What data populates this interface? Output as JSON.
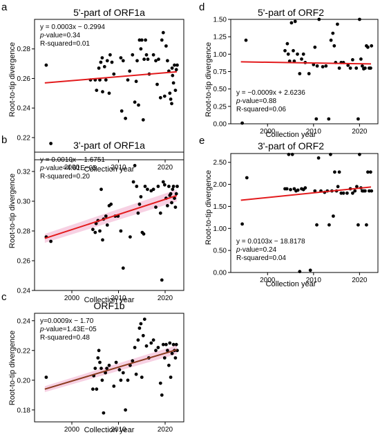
{
  "figure": {
    "panels": [
      "a",
      "d",
      "b",
      "e",
      "c"
    ]
  },
  "chart_data": [
    {
      "panel_letter": "a",
      "type": "scatter",
      "title": "5'-part of ORF1a",
      "xlabel": "Collection year",
      "ylabel": "Root-to-tip divergence",
      "xlim": [
        1992,
        2024
      ],
      "ylim": [
        0.205,
        0.3
      ],
      "xticks": [
        2000,
        2010,
        2020
      ],
      "yticks": [
        0.22,
        0.24,
        0.26,
        0.28
      ],
      "ytick_labels": [
        "0.22",
        "0.24",
        "0.26",
        "0.28"
      ],
      "stats": [
        "y = 0.0003x − 0.2994",
        "p-value=0.34",
        "R-squared=0.01"
      ],
      "regression": {
        "x": [
          1994.2,
          2022.5
        ],
        "y": [
          0.257,
          0.2645
        ],
        "color": "#e31a1c"
      },
      "band": null,
      "points": [
        [
          1994.5,
          0.269
        ],
        [
          1995.5,
          0.216
        ],
        [
          2004,
          0.259
        ],
        [
          2005,
          0.259
        ],
        [
          2005.3,
          0.252
        ],
        [
          2005.8,
          0.267
        ],
        [
          2006,
          0.259
        ],
        [
          2006.2,
          0.271
        ],
        [
          2006.5,
          0.274
        ],
        [
          2006.6,
          0.251
        ],
        [
          2007,
          0.268
        ],
        [
          2007.3,
          0.259
        ],
        [
          2007.6,
          0.272
        ],
        [
          2008,
          0.25
        ],
        [
          2008.2,
          0.276
        ],
        [
          2008.6,
          0.271
        ],
        [
          2009,
          0.263
        ],
        [
          2010.5,
          0.274
        ],
        [
          2010.7,
          0.238
        ],
        [
          2011,
          0.272
        ],
        [
          2011.5,
          0.233
        ],
        [
          2012,
          0.259
        ],
        [
          2012.4,
          0.265
        ],
        [
          2013,
          0.276
        ],
        [
          2013.5,
          0.244
        ],
        [
          2013.8,
          0.258
        ],
        [
          2014,
          0.272
        ],
        [
          2014.3,
          0.242
        ],
        [
          2014.5,
          0.286
        ],
        [
          2014.8,
          0.28
        ],
        [
          2015,
          0.286
        ],
        [
          2015.3,
          0.232
        ],
        [
          2015.5,
          0.273
        ],
        [
          2015.8,
          0.286
        ],
        [
          2016,
          0.276
        ],
        [
          2016.3,
          0.273
        ],
        [
          2016.6,
          0.263
        ],
        [
          2017.5,
          0.276
        ],
        [
          2018,
          0.272
        ],
        [
          2018.3,
          0.256
        ],
        [
          2018.6,
          0.273
        ],
        [
          2019,
          0.247
        ],
        [
          2019.3,
          0.286
        ],
        [
          2019.6,
          0.291
        ],
        [
          2019.9,
          0.248
        ],
        [
          2020.2,
          0.282
        ],
        [
          2020.5,
          0.272
        ],
        [
          2020.8,
          0.265
        ],
        [
          2021,
          0.25
        ],
        [
          2021.2,
          0.246
        ],
        [
          2021.4,
          0.243
        ],
        [
          2021.5,
          0.267
        ],
        [
          2021.6,
          0.262
        ],
        [
          2021.8,
          0.257
        ],
        [
          2022,
          0.269
        ],
        [
          2022.2,
          0.252
        ],
        [
          2022.4,
          0.266
        ],
        [
          2022.6,
          0.269
        ]
      ]
    },
    {
      "panel_letter": "d",
      "type": "scatter",
      "title": "5'-part of ORF2",
      "xlabel": "Collection year",
      "ylabel": "Root-to-tip divergence",
      "xlim": [
        1992,
        2024
      ],
      "ylim": [
        0,
        1.5
      ],
      "xticks": [
        2000,
        2010,
        2020
      ],
      "yticks": [
        0,
        0.25,
        0.5,
        0.75,
        1.0,
        1.25,
        1.5
      ],
      "ytick_labels": [
        "0.00",
        "0.25",
        "0.50",
        "0.75",
        "1.00",
        "1.25",
        "1.50"
      ],
      "stats": [
        "y = −0.0009x + 2.6236",
        "p-value=0.88",
        "R-squared=0.06"
      ],
      "regression": {
        "x": [
          1994.2,
          2022.5
        ],
        "y": [
          0.89,
          0.86
        ],
        "color": "#e31a1c"
      },
      "band": null,
      "points": [
        [
          1994.5,
          0.01
        ],
        [
          1995.3,
          1.2
        ],
        [
          2003.8,
          1.05
        ],
        [
          2004.3,
          1.15
        ],
        [
          2004.5,
          1.0
        ],
        [
          2004.8,
          0.9
        ],
        [
          2005.2,
          1.45
        ],
        [
          2005.6,
          1.05
        ],
        [
          2005.8,
          0.9
        ],
        [
          2006,
          1.47
        ],
        [
          2006.5,
          1.0
        ],
        [
          2007,
          0.72
        ],
        [
          2007.4,
          0.93
        ],
        [
          2007.8,
          1.0
        ],
        [
          2008.2,
          0.88
        ],
        [
          2009,
          0.72
        ],
        [
          2010,
          0.85
        ],
        [
          2010.3,
          1.1
        ],
        [
          2010.6,
          0.07
        ],
        [
          2010.8,
          0.83
        ],
        [
          2011.2,
          1.5
        ],
        [
          2012,
          0.82
        ],
        [
          2012.7,
          0.83
        ],
        [
          2013.3,
          0.07
        ],
        [
          2013.8,
          1.2
        ],
        [
          2014.2,
          1.3
        ],
        [
          2014.5,
          1.12
        ],
        [
          2014.8,
          0.88
        ],
        [
          2015.2,
          1.43
        ],
        [
          2015.6,
          0.8
        ],
        [
          2016,
          0.88
        ],
        [
          2016.5,
          0.88
        ],
        [
          2017.5,
          0.84
        ],
        [
          2018,
          0.8
        ],
        [
          2018.5,
          0.92
        ],
        [
          2019.3,
          0.8
        ],
        [
          2019.7,
          0.07
        ],
        [
          2020,
          1.5
        ],
        [
          2020.3,
          0.93
        ],
        [
          2020.6,
          0.83
        ],
        [
          2020.9,
          0.79
        ],
        [
          2021.2,
          0.8
        ],
        [
          2021.5,
          1.12
        ],
        [
          2021.8,
          1.1
        ],
        [
          2022.1,
          0.8
        ],
        [
          2022.4,
          0.8
        ],
        [
          2022.6,
          1.12
        ]
      ]
    },
    {
      "panel_letter": "b",
      "type": "scatter",
      "title": "3'-part of ORF1a",
      "xlabel": "Collection year",
      "ylabel": "Root-to-tip divergence",
      "xlim": [
        1992,
        2024
      ],
      "ylim": [
        0.24,
        0.333
      ],
      "xticks": [
        2000,
        2010,
        2020
      ],
      "yticks": [
        0.24,
        0.26,
        0.28,
        0.3,
        0.32
      ],
      "ytick_labels": [
        "0.24",
        "0.26",
        "0.28",
        "0.30",
        "0.32"
      ],
      "stats": [
        "y = 0.0010x − 1.6751",
        "p-value=4.61E−05",
        "R-squared=0.20"
      ],
      "regression": {
        "x": [
          1994.2,
          2022.5
        ],
        "y": [
          0.275,
          0.3038
        ],
        "color": "#e31a1c"
      },
      "band": {
        "color": "#f4c2d9",
        "halfwidth": [
          0.003,
          0.004
        ]
      },
      "points": [
        [
          1994.5,
          0.276
        ],
        [
          1995.5,
          0.273
        ],
        [
          2004.5,
          0.281
        ],
        [
          2005,
          0.279
        ],
        [
          2005.2,
          0.285
        ],
        [
          2005.6,
          0.287
        ],
        [
          2006,
          0.28
        ],
        [
          2006.3,
          0.308
        ],
        [
          2006.6,
          0.274
        ],
        [
          2006.8,
          0.288
        ],
        [
          2007.3,
          0.29
        ],
        [
          2007.6,
          0.284
        ],
        [
          2008,
          0.297
        ],
        [
          2008.4,
          0.298
        ],
        [
          2009.3,
          0.29
        ],
        [
          2009.9,
          0.29
        ],
        [
          2010.5,
          0.28
        ],
        [
          2011,
          0.255
        ],
        [
          2012.5,
          0.276
        ],
        [
          2013.2,
          0.313
        ],
        [
          2013.5,
          0.324
        ],
        [
          2013.9,
          0.31
        ],
        [
          2014.2,
          0.292
        ],
        [
          2014.5,
          0.298
        ],
        [
          2014.8,
          0.303
        ],
        [
          2015.1,
          0.279
        ],
        [
          2015.4,
          0.278
        ],
        [
          2015.7,
          0.31
        ],
        [
          2016.2,
          0.308
        ],
        [
          2017,
          0.307
        ],
        [
          2017.5,
          0.308
        ],
        [
          2018,
          0.296
        ],
        [
          2018.5,
          0.31
        ],
        [
          2019,
          0.292
        ],
        [
          2019.3,
          0.247
        ],
        [
          2019.6,
          0.313
        ],
        [
          2019.9,
          0.311
        ],
        [
          2020.2,
          0.302
        ],
        [
          2020.5,
          0.297
        ],
        [
          2020.8,
          0.31
        ],
        [
          2021,
          0.304
        ],
        [
          2021.2,
          0.305
        ],
        [
          2021.4,
          0.299
        ],
        [
          2021.6,
          0.308
        ],
        [
          2021.8,
          0.31
        ],
        [
          2022,
          0.302
        ],
        [
          2022.2,
          0.296
        ],
        [
          2022.4,
          0.305
        ],
        [
          2022.6,
          0.31
        ]
      ]
    },
    {
      "panel_letter": "e",
      "type": "scatter",
      "title": "3'-part of ORF2",
      "xlabel": "Collection year",
      "ylabel": "Root-to-tip divergence",
      "xlim": [
        1992,
        2024
      ],
      "ylim": [
        0,
        2.7
      ],
      "xticks": [
        2000,
        2010,
        2020
      ],
      "yticks": [
        0,
        0.5,
        1.0,
        1.5,
        2.0,
        2.5
      ],
      "ytick_labels": [
        "0.00",
        "0.50",
        "1.00",
        "1.50",
        "2.00",
        "2.50"
      ],
      "stats": [
        "y = 0.0103x − 18.8178",
        "p-value=0.24",
        "R-squared=0.04"
      ],
      "regression": {
        "x": [
          1994.2,
          2022.5
        ],
        "y": [
          1.64,
          1.94
        ],
        "color": "#e31a1c"
      },
      "band": null,
      "points": [
        [
          1994.5,
          1.1
        ],
        [
          1995.5,
          2.15
        ],
        [
          2003.8,
          1.9
        ],
        [
          2004.2,
          1.9
        ],
        [
          2004.6,
          2.68
        ],
        [
          2005,
          1.88
        ],
        [
          2005.4,
          2.68
        ],
        [
          2005.8,
          1.9
        ],
        [
          2006.2,
          1.85
        ],
        [
          2006.6,
          1.87
        ],
        [
          2007,
          0.02
        ],
        [
          2007.4,
          1.9
        ],
        [
          2007.8,
          1.88
        ],
        [
          2008.2,
          1.92
        ],
        [
          2009.3,
          0.05
        ],
        [
          2010.3,
          1.85
        ],
        [
          2010.7,
          1.08
        ],
        [
          2011.1,
          2.6
        ],
        [
          2011.6,
          1.85
        ],
        [
          2012.4,
          1.82
        ],
        [
          2013,
          1.85
        ],
        [
          2013.4,
          1.08
        ],
        [
          2013.7,
          2.68
        ],
        [
          2014,
          1.85
        ],
        [
          2014.3,
          1.28
        ],
        [
          2014.6,
          2.28
        ],
        [
          2015,
          1.85
        ],
        [
          2015.3,
          1.95
        ],
        [
          2015.6,
          2.28
        ],
        [
          2016,
          1.8
        ],
        [
          2016.5,
          1.8
        ],
        [
          2017.3,
          1.8
        ],
        [
          2018,
          1.9
        ],
        [
          2018.5,
          1.8
        ],
        [
          2019,
          1.85
        ],
        [
          2019.4,
          1.95
        ],
        [
          2019.7,
          1.08
        ],
        [
          2020,
          2.68
        ],
        [
          2020.3,
          1.92
        ],
        [
          2020.6,
          1.85
        ],
        [
          2020.9,
          1.85
        ],
        [
          2021.2,
          1.85
        ],
        [
          2021.5,
          1.08
        ],
        [
          2021.8,
          2.28
        ],
        [
          2022.1,
          1.85
        ],
        [
          2022.4,
          2.28
        ],
        [
          2022.6,
          1.85
        ]
      ]
    },
    {
      "panel_letter": "c",
      "type": "scatter",
      "title": "ORF1b",
      "xlabel": "Collection year",
      "ylabel": "Root-to-tip divergence",
      "xlim": [
        1992,
        2024
      ],
      "ylim": [
        0.172,
        0.245
      ],
      "xticks": [
        2000,
        2010,
        2020
      ],
      "yticks": [
        0.18,
        0.2,
        0.22,
        0.24
      ],
      "ytick_labels": [
        "0.18",
        "0.20",
        "0.22",
        "0.24"
      ],
      "stats": [
        "y=0.0009x − 1.70",
        "p-value=1.43E−05",
        "R-squared=0.48"
      ],
      "regression": {
        "x": [
          1994.2,
          2022.5
        ],
        "y": [
          0.194,
          0.2205
        ],
        "color": "#8b3a1e"
      },
      "band": {
        "color": "#f4c2d9",
        "halfwidth": [
          0.002,
          0.003
        ]
      },
      "points": [
        [
          1994.5,
          0.202
        ],
        [
          2004.5,
          0.194
        ],
        [
          2004.7,
          0.203
        ],
        [
          2005,
          0.208
        ],
        [
          2005.3,
          0.194
        ],
        [
          2005.6,
          0.215
        ],
        [
          2005.8,
          0.22
        ],
        [
          2006,
          0.212
        ],
        [
          2006.3,
          0.208
        ],
        [
          2006.5,
          0.2
        ],
        [
          2006.8,
          0.178
        ],
        [
          2007.2,
          0.205
        ],
        [
          2007.5,
          0.208
        ],
        [
          2008,
          0.21
        ],
        [
          2009,
          0.196
        ],
        [
          2009.5,
          0.212
        ],
        [
          2010.2,
          0.207
        ],
        [
          2010.5,
          0.2
        ],
        [
          2011,
          0.205
        ],
        [
          2011.5,
          0.18
        ],
        [
          2012,
          0.2
        ],
        [
          2012.5,
          0.21
        ],
        [
          2013,
          0.213
        ],
        [
          2013.5,
          0.222
        ],
        [
          2013.8,
          0.204
        ],
        [
          2014.2,
          0.227
        ],
        [
          2014.5,
          0.235
        ],
        [
          2014.8,
          0.238
        ],
        [
          2015,
          0.202
        ],
        [
          2015.3,
          0.23
        ],
        [
          2015.6,
          0.241
        ],
        [
          2016,
          0.223
        ],
        [
          2016.5,
          0.215
        ],
        [
          2017,
          0.225
        ],
        [
          2017.5,
          0.227
        ],
        [
          2018,
          0.22
        ],
        [
          2018.5,
          0.222
        ],
        [
          2019,
          0.198
        ],
        [
          2019.3,
          0.19
        ],
        [
          2019.6,
          0.224
        ],
        [
          2019.9,
          0.215
        ],
        [
          2020.2,
          0.224
        ],
        [
          2020.5,
          0.22
        ],
        [
          2020.8,
          0.21
        ],
        [
          2021,
          0.225
        ],
        [
          2021.2,
          0.202
        ],
        [
          2021.5,
          0.218
        ],
        [
          2021.8,
          0.224
        ],
        [
          2022,
          0.22
        ],
        [
          2022.2,
          0.215
        ],
        [
          2022.4,
          0.224
        ],
        [
          2022.6,
          0.22
        ]
      ]
    }
  ]
}
